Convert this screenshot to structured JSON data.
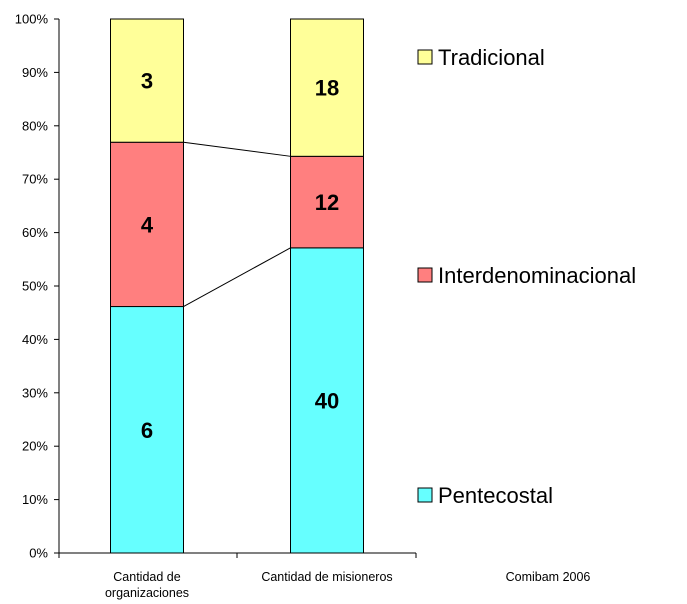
{
  "chart_data": {
    "type": "bar",
    "stacked": "percent",
    "categories": [
      [
        "Cantidad de",
        "organizaciones"
      ],
      [
        "Cantidad de misioneros"
      ]
    ],
    "series": [
      {
        "name": "Pentecostal",
        "values": [
          6,
          40
        ],
        "color": "#66ffff"
      },
      {
        "name": "Interdenominacional",
        "values": [
          4,
          12
        ],
        "color": "#ff7f7f"
      },
      {
        "name": "Tradicional",
        "values": [
          3,
          18
        ],
        "color": "#ffff99"
      }
    ],
    "y_ticks": [
      "0%",
      "10%",
      "20%",
      "30%",
      "40%",
      "50%",
      "60%",
      "70%",
      "80%",
      "90%",
      "100%"
    ],
    "ylim": [
      0,
      100
    ],
    "legend_position": "right",
    "series_lines": true,
    "annotation": "Comibam 2006"
  }
}
